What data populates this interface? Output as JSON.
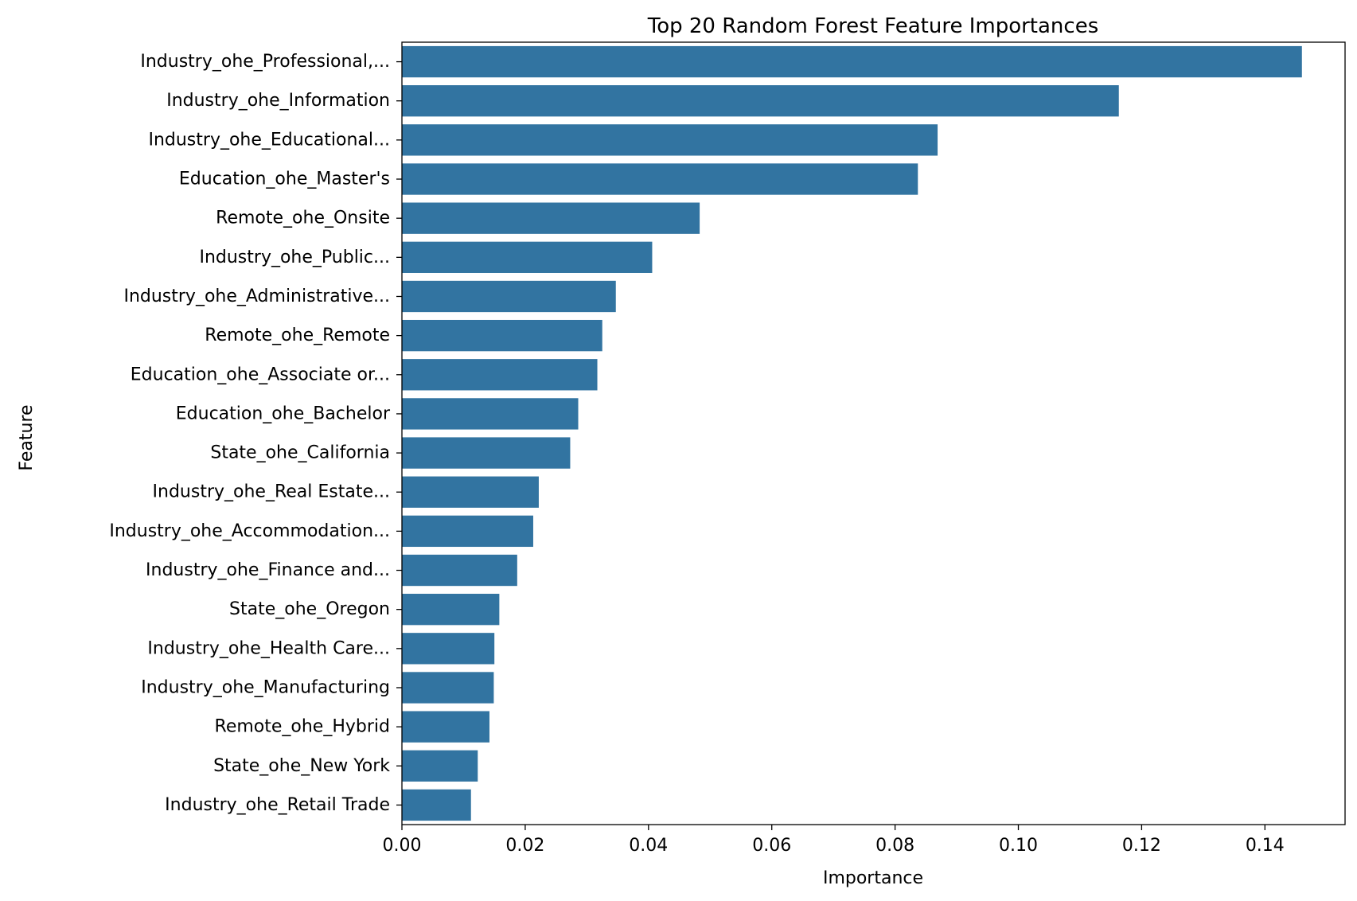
{
  "chart_data": {
    "type": "bar",
    "orientation": "horizontal",
    "title": "Top 20 Random Forest Feature Importances",
    "xlabel": "Importance",
    "ylabel": "Feature",
    "xlim": [
      0,
      0.153
    ],
    "xticks": [
      "0.00",
      "0.02",
      "0.04",
      "0.06",
      "0.08",
      "0.10",
      "0.12",
      "0.14"
    ],
    "xtick_values": [
      0,
      0.02,
      0.04,
      0.06,
      0.08,
      0.1,
      0.12,
      0.14
    ],
    "grid": false,
    "bar_color": "#3274a1",
    "categories": [
      "Industry_ohe_Professional,...",
      "Industry_ohe_Information",
      "Industry_ohe_Educational...",
      "Education_ohe_Master's",
      "Remote_ohe_Onsite",
      "Industry_ohe_Public...",
      "Industry_ohe_Administrative...",
      "Remote_ohe_Remote",
      "Education_ohe_Associate or...",
      "Education_ohe_Bachelor",
      "State_ohe_California",
      "Industry_ohe_Real Estate...",
      "Industry_ohe_Accommodation...",
      "Industry_ohe_Finance and...",
      "State_ohe_Oregon",
      "Industry_ohe_Health Care...",
      "Industry_ohe_Manufacturing",
      "Remote_ohe_Hybrid",
      "State_ohe_New York",
      "Industry_ohe_Retail Trade"
    ],
    "values": [
      0.146,
      0.1163,
      0.0869,
      0.0837,
      0.0483,
      0.0406,
      0.0347,
      0.0325,
      0.0317,
      0.0286,
      0.0273,
      0.0222,
      0.0213,
      0.0187,
      0.0158,
      0.015,
      0.0149,
      0.0142,
      0.0123,
      0.0112
    ]
  }
}
